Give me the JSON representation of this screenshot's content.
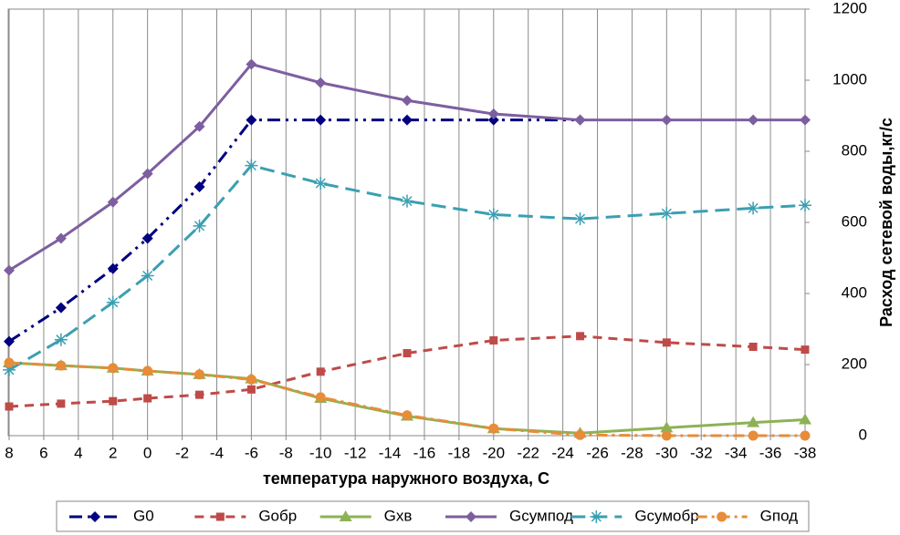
{
  "chart_data": {
    "type": "line",
    "x_label": "температура наружного воздуха, С",
    "y_label": "Расход сетевой воды,кг/с",
    "x": [
      8,
      5,
      2,
      0,
      -3,
      -6,
      -10,
      -15,
      -20,
      -25,
      -30,
      -35,
      -38
    ],
    "xlim": [
      8,
      -38
    ],
    "xticks": [
      8,
      6,
      4,
      2,
      0,
      -2,
      -4,
      -6,
      -8,
      -10,
      -12,
      -14,
      -16,
      -18,
      -20,
      -22,
      -24,
      -26,
      -28,
      -30,
      -32,
      -34,
      -36,
      -38
    ],
    "ylim": [
      0,
      1200
    ],
    "yticks": [
      0,
      200,
      400,
      600,
      800,
      1000,
      1200
    ],
    "y_axis_side": "right",
    "grid": "x",
    "legend": "bottom",
    "series": [
      {
        "name": "G0",
        "color": "#000080",
        "marker": "diamond",
        "dash": "dash-dot-dot",
        "values": [
          265,
          360,
          470,
          555,
          700,
          888,
          888,
          888,
          888,
          888,
          null,
          null,
          null
        ]
      },
      {
        "name": "Gобр",
        "color": "#be4b48",
        "marker": "square",
        "dash": "dash",
        "values": [
          82,
          90,
          97,
          105,
          115,
          130,
          180,
          232,
          268,
          280,
          262,
          250,
          242
        ]
      },
      {
        "name": "Gхв",
        "color": "#8db255",
        "marker": "triangle",
        "dash": "solid",
        "values": [
          205,
          197,
          190,
          182,
          172,
          160,
          105,
          55,
          20,
          7,
          22,
          37,
          45
        ]
      },
      {
        "name": "Gсумпод",
        "color": "#7d5fa0",
        "marker": "diamond",
        "dash": "solid",
        "values": [
          465,
          555,
          657,
          737,
          870,
          1045,
          993,
          943,
          905,
          888,
          888,
          888,
          888
        ]
      },
      {
        "name": "Gсумобр",
        "color": "#3b9fb2",
        "marker": "asterisk",
        "dash": "long-dash",
        "values": [
          185,
          270,
          375,
          450,
          590,
          760,
          710,
          660,
          622,
          610,
          625,
          640,
          648
        ]
      },
      {
        "name": "Gпод",
        "color": "#e78c39",
        "marker": "circle",
        "dash": "dash-dot",
        "values": [
          205,
          197,
          190,
          182,
          172,
          158,
          108,
          57,
          20,
          2,
          0,
          0,
          0
        ]
      }
    ]
  }
}
